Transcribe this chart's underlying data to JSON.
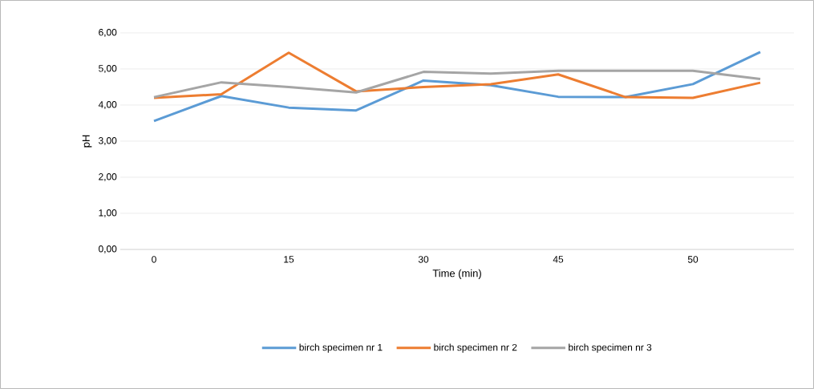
{
  "chart_data": {
    "type": "line",
    "xlabel": "Time (min)",
    "ylabel": "pH",
    "categories": [
      "0",
      null,
      "15",
      null,
      "30",
      null,
      "45",
      null,
      "50",
      null
    ],
    "series": [
      {
        "name": "birch specimen nr 1",
        "color": "#5b9bd5",
        "values": [
          3.56,
          4.25,
          3.93,
          3.85,
          4.68,
          4.55,
          4.23,
          4.22,
          4.58,
          5.47
        ]
      },
      {
        "name": "birch specimen nr 2",
        "color": "#ed7d31",
        "values": [
          4.2,
          4.3,
          5.45,
          4.38,
          4.5,
          4.58,
          4.85,
          4.22,
          4.2,
          4.62
        ]
      },
      {
        "name": "birch specimen nr 3",
        "color": "#a5a5a5",
        "values": [
          4.22,
          4.63,
          4.5,
          4.35,
          4.92,
          4.87,
          4.95,
          4.95,
          4.95,
          4.72
        ]
      }
    ],
    "ylim": [
      0,
      6
    ],
    "yticks": [
      {
        "value": 0,
        "label": "0,00"
      },
      {
        "value": 1,
        "label": "1,00"
      },
      {
        "value": 2,
        "label": "2,00"
      },
      {
        "value": 3,
        "label": "3,00"
      },
      {
        "value": 4,
        "label": "4,00"
      },
      {
        "value": 5,
        "label": "5,00"
      },
      {
        "value": 6,
        "label": "6,00"
      }
    ],
    "grid": "y",
    "legend": "bottom",
    "marker": "none",
    "line_style": "solid"
  }
}
